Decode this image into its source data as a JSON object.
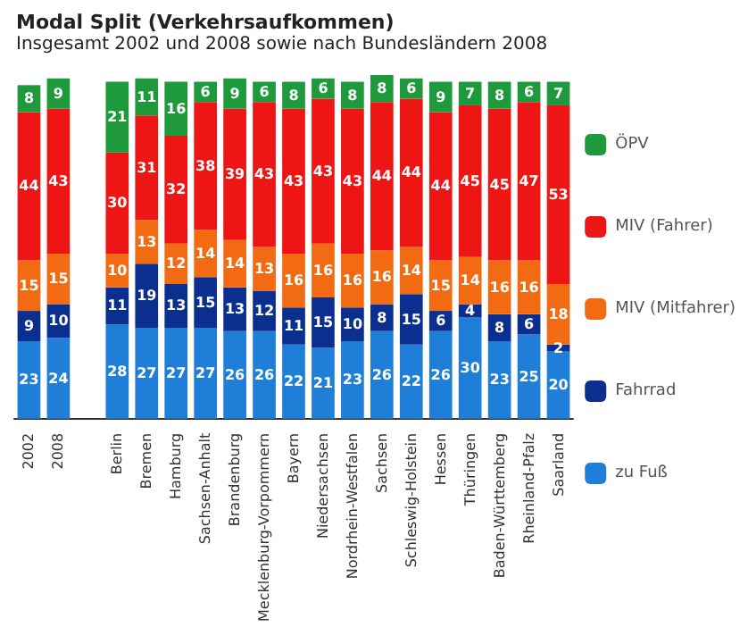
{
  "chart_data": {
    "type": "bar",
    "title": "Modal Split (Verkehrsaufkommen)",
    "subtitle": "Insgesamt 2002 und 2008 sowie nach Bundesländern 2008",
    "categories": [
      "2002",
      "2008",
      null,
      "Berlin",
      "Bremen",
      "Hamburg",
      "Sachsen-Anhalt",
      "Brandenburg",
      "Mecklenburg-Vorpommern",
      "Bayern",
      "Niedersachsen",
      "Nordrhein-Westfalen",
      "Sachsen",
      "Schleswig-Holstein",
      "Hessen",
      "Thüringen",
      "Baden-Württemberg",
      "Rheinland-Pfalz",
      "Saarland"
    ],
    "stacked": true,
    "data_labels": true,
    "legend": "right",
    "series": [
      {
        "name": "zu Fuß",
        "color": "#1f7fd8",
        "values": [
          23,
          24,
          null,
          28,
          27,
          27,
          27,
          26,
          26,
          22,
          21,
          23,
          26,
          22,
          26,
          30,
          23,
          25,
          20
        ]
      },
      {
        "name": "Fahrrad",
        "color": "#0b2f8e",
        "values": [
          9,
          10,
          null,
          11,
          19,
          13,
          15,
          13,
          12,
          11,
          15,
          10,
          8,
          15,
          6,
          4,
          8,
          6,
          2
        ]
      },
      {
        "name": "MIV (Mitfahrer)",
        "color": "#f26a12",
        "values": [
          15,
          15,
          null,
          10,
          13,
          12,
          14,
          14,
          13,
          16,
          16,
          16,
          16,
          14,
          15,
          14,
          16,
          16,
          18
        ]
      },
      {
        "name": "MIV (Fahrer)",
        "color": "#ee1515",
        "values": [
          44,
          43,
          null,
          30,
          31,
          32,
          38,
          39,
          43,
          43,
          43,
          43,
          44,
          44,
          44,
          45,
          45,
          47,
          53
        ]
      },
      {
        "name": "ÖPV",
        "color": "#1e9a3c",
        "values": [
          8,
          9,
          null,
          21,
          11,
          16,
          6,
          9,
          6,
          8,
          6,
          8,
          8,
          6,
          9,
          7,
          8,
          6,
          7
        ]
      }
    ]
  }
}
